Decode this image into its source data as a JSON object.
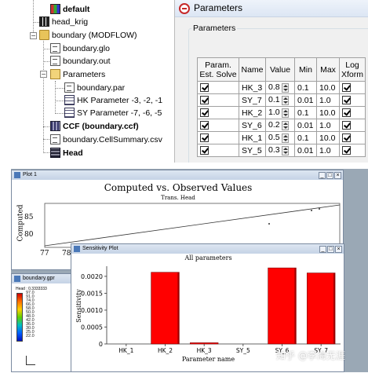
{
  "tree": {
    "items": [
      {
        "label": "default",
        "bold": true
      },
      {
        "label": "head_krig",
        "bold": false
      },
      {
        "label": "boundary (MODFLOW)",
        "bold": false
      },
      {
        "label": "boundary.glo",
        "bold": false
      },
      {
        "label": "boundary.out",
        "bold": false
      },
      {
        "label": "Parameters",
        "bold": false
      },
      {
        "label": "boundary.par",
        "bold": false
      },
      {
        "label": "HK Parameter -3, -2, -1",
        "bold": false
      },
      {
        "label": "SY Parameter -7, -6, -5",
        "bold": false
      },
      {
        "label": "CCF (boundary.ccf)",
        "bold": true
      },
      {
        "label": "boundary.CellSummary.csv",
        "bold": false
      },
      {
        "label": "Head",
        "bold": true
      }
    ]
  },
  "parameters_window": {
    "title": "Parameters",
    "group_label": "Parameters",
    "columns": [
      "Param. Est. Solve",
      "Name",
      "Value",
      "Min",
      "Max",
      "Log Xform"
    ],
    "rows": [
      {
        "solve": true,
        "name": "HK_3",
        "value": "0.8",
        "min": "0.1",
        "max": "10.0",
        "log": true
      },
      {
        "solve": true,
        "name": "SY_7",
        "value": "0.1",
        "min": "0.01",
        "max": "1.0",
        "log": true
      },
      {
        "solve": true,
        "name": "HK_2",
        "value": "1.0",
        "min": "0.1",
        "max": "10.0",
        "log": true
      },
      {
        "solve": true,
        "name": "SY_6",
        "value": "0.2",
        "min": "0.01",
        "max": "1.0",
        "log": true
      },
      {
        "solve": true,
        "name": "HK_1",
        "value": "0.5",
        "min": "0.1",
        "max": "10.0",
        "log": true
      },
      {
        "solve": true,
        "name": "SY_5",
        "value": "0.3",
        "min": "0.01",
        "max": "1.0",
        "log": true
      }
    ]
  },
  "plot1": {
    "window_title": "Plot 1",
    "title": "Computed vs. Observed Values",
    "subtitle": "Trans. Head",
    "ylabel": "Computed",
    "y_ticks": [
      "85",
      "80"
    ],
    "x_ticks": [
      "77",
      "78"
    ]
  },
  "legend_window": {
    "window_title": "boundary.gpr",
    "header": "Head : 0.3333333",
    "values": [
      "97.0",
      "91.0",
      "74.0",
      "66.0",
      "58.0",
      "50.0",
      "48.0",
      "42.0",
      "36.0",
      "30.0",
      "25.0",
      "22.0"
    ]
  },
  "sensitivity": {
    "window_title": "Sensitivity Plot",
    "chart_data": {
      "type": "bar",
      "title": "All parameters",
      "xlabel": "Parameter name",
      "ylabel": "Sensitivity",
      "categories": [
        "HK_1",
        "HK_2",
        "HK_3",
        "SY_5",
        "SY_6",
        "SY_7"
      ],
      "values": [
        0,
        0.00212,
        3e-05,
        0,
        0.00225,
        0.0021
      ],
      "ylim": [
        0,
        0.0023
      ],
      "y_ticks": [
        0,
        0.0005,
        0.001,
        0.0015,
        0.002
      ],
      "y_tick_labels": [
        "0",
        "0.0005",
        "0.0010",
        "0.0015",
        "0.0020"
      ],
      "bar_color": "#ff0000"
    }
  },
  "watermark": "知乎 @李海无涯",
  "colors": {
    "accent": "#c62828",
    "bar": "#ff0000"
  }
}
